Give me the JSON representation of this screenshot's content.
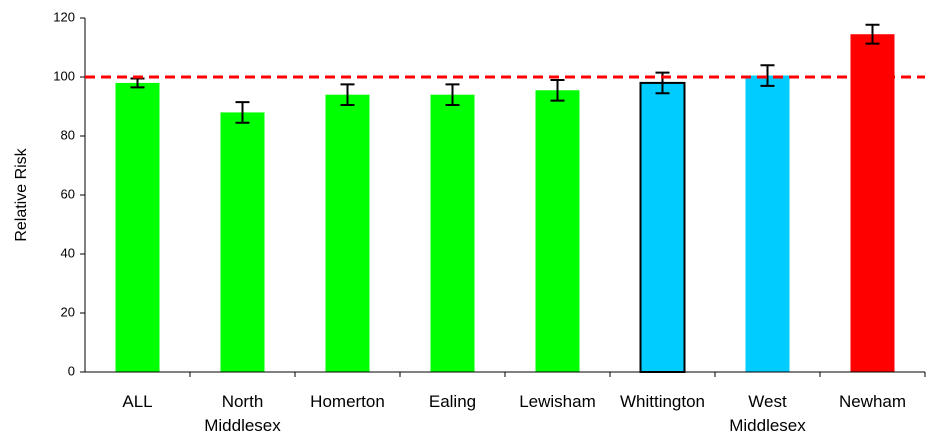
{
  "chart_data": {
    "type": "bar",
    "ylabel": "Relative Risk",
    "categories": [
      "ALL",
      "North Middlesex",
      "Homerton",
      "Ealing",
      "Lewisham",
      "Whittington",
      "West Middlesex",
      "Newham"
    ],
    "values": [
      98,
      88,
      94,
      94,
      95.5,
      98,
      100.5,
      114.5
    ],
    "errors": [
      1.5,
      3.5,
      3.5,
      3.5,
      3.5,
      3.5,
      3.5,
      3.2
    ],
    "colors": [
      "#00ff00",
      "#00ff00",
      "#00ff00",
      "#00ff00",
      "#00ff00",
      "#00ccff",
      "#00ccff",
      "#ff0000"
    ],
    "edge_colors": [
      null,
      null,
      null,
      null,
      null,
      "#000000",
      null,
      null
    ],
    "reference_line": {
      "value": 100,
      "color": "#ff0000"
    },
    "ylim": [
      0,
      120
    ],
    "yticks": [
      0,
      20,
      40,
      60,
      80,
      100,
      120
    ],
    "grid": false
  }
}
